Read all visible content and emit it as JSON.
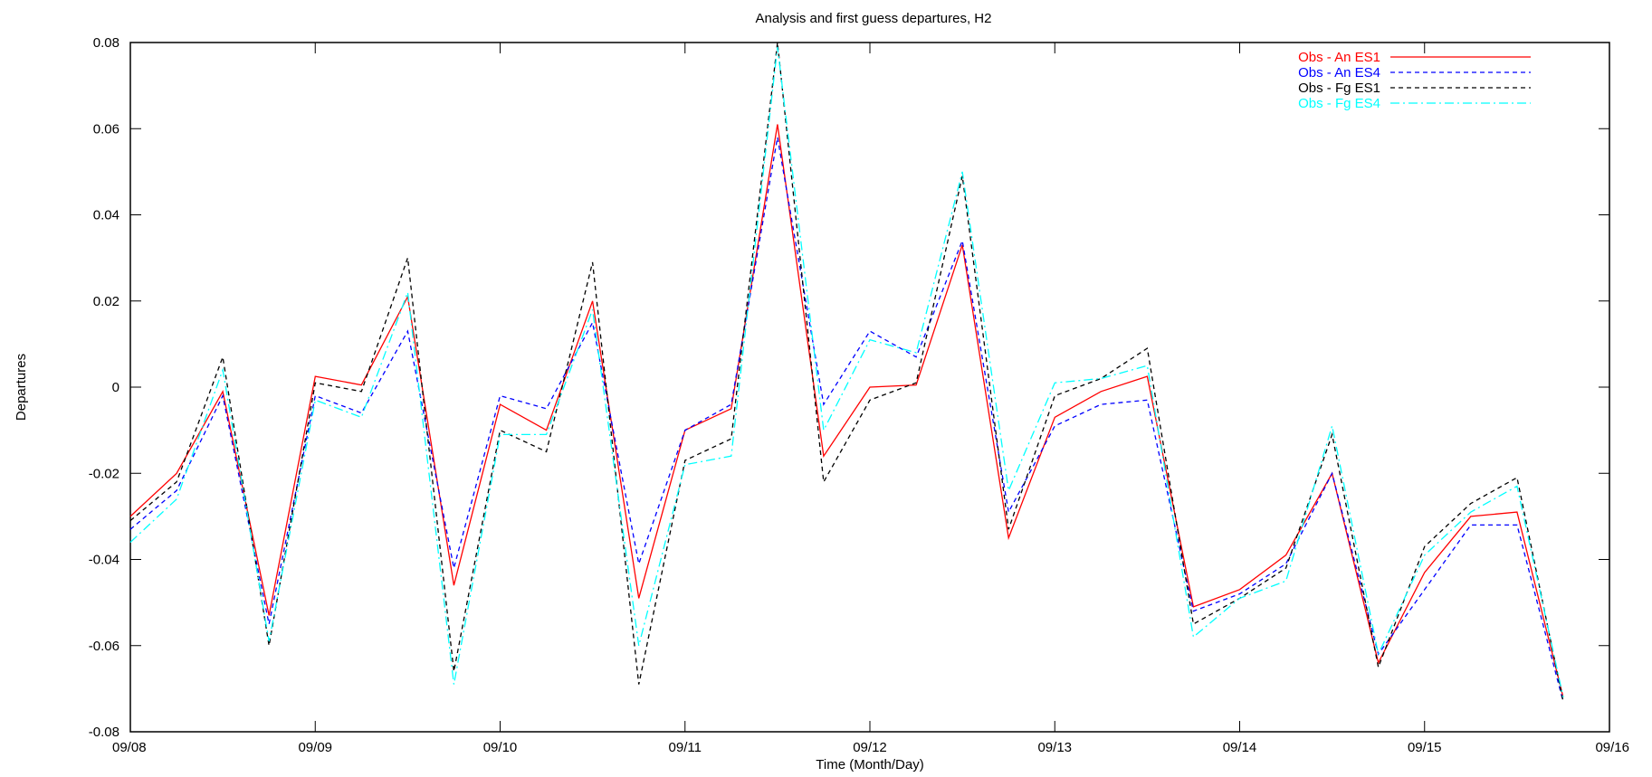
{
  "chart_data": {
    "type": "line",
    "title": "Analysis and first guess departures, H2",
    "xlabel": "Time (Month/Day)",
    "ylabel": "Departures",
    "xlim": [
      0,
      8
    ],
    "ylim": [
      -0.08,
      0.08
    ],
    "x_ticks": [
      {
        "value": 0,
        "label": "09/08"
      },
      {
        "value": 1,
        "label": "09/09"
      },
      {
        "value": 2,
        "label": "09/10"
      },
      {
        "value": 3,
        "label": "09/11"
      },
      {
        "value": 4,
        "label": "09/12"
      },
      {
        "value": 5,
        "label": "09/13"
      },
      {
        "value": 6,
        "label": "09/14"
      },
      {
        "value": 7,
        "label": "09/15"
      },
      {
        "value": 8,
        "label": "09/16"
      }
    ],
    "y_ticks": [
      {
        "value": 0.08,
        "label": "0.08"
      },
      {
        "value": 0.06,
        "label": "0.06"
      },
      {
        "value": 0.04,
        "label": "0.04"
      },
      {
        "value": 0.02,
        "label": "0.02"
      },
      {
        "value": 0,
        "label": "0"
      },
      {
        "value": -0.02,
        "label": "-0.02"
      },
      {
        "value": -0.04,
        "label": "-0.04"
      },
      {
        "value": -0.06,
        "label": "-0.06"
      },
      {
        "value": -0.08,
        "label": "-0.08"
      }
    ],
    "grid": false,
    "legend_position": "top-right",
    "x": [
      0,
      0.25,
      0.5,
      0.75,
      1,
      1.25,
      1.5,
      1.75,
      2,
      2.25,
      2.5,
      2.75,
      3,
      3.25,
      3.5,
      3.75,
      4,
      4.25,
      4.5,
      4.75,
      5,
      5.25,
      5.5,
      5.75,
      6,
      6.25,
      6.5,
      6.75,
      7,
      7.25,
      7.5,
      7.75
    ],
    "series": [
      {
        "name": "Obs - An ES1",
        "color": "#ff0000",
        "dash": "solid",
        "values": [
          -0.03,
          -0.02,
          -0.001,
          -0.053,
          0.0025,
          0.0005,
          0.021,
          -0.046,
          -0.004,
          -0.01,
          0.02,
          -0.049,
          -0.01,
          -0.005,
          0.061,
          -0.016,
          0.0,
          0.0005,
          0.033,
          -0.035,
          -0.007,
          -0.001,
          0.0025,
          -0.051,
          -0.047,
          -0.039,
          -0.02,
          -0.064,
          -0.043,
          -0.03,
          -0.029,
          -0.072
        ]
      },
      {
        "name": "Obs - An ES4",
        "color": "#0000ff",
        "dash": "dashed",
        "values": [
          -0.033,
          -0.024,
          -0.002,
          -0.055,
          -0.002,
          -0.006,
          0.013,
          -0.042,
          -0.002,
          -0.005,
          0.015,
          -0.041,
          -0.01,
          -0.004,
          0.058,
          -0.004,
          0.013,
          0.007,
          0.034,
          -0.029,
          -0.009,
          -0.004,
          -0.003,
          -0.052,
          -0.048,
          -0.041,
          -0.02,
          -0.062,
          -0.047,
          -0.032,
          -0.032,
          -0.073
        ]
      },
      {
        "name": "Obs - Fg ES1",
        "color": "#000000",
        "dash": "dashed",
        "values": [
          -0.031,
          -0.022,
          0.007,
          -0.06,
          0.001,
          -0.001,
          0.03,
          -0.066,
          -0.01,
          -0.015,
          0.029,
          -0.069,
          -0.017,
          -0.012,
          0.08,
          -0.022,
          -0.003,
          0.001,
          0.049,
          -0.033,
          -0.002,
          0.002,
          0.009,
          -0.055,
          -0.049,
          -0.042,
          -0.011,
          -0.065,
          -0.037,
          -0.027,
          -0.021,
          -0.073
        ]
      },
      {
        "name": "Obs - Fg ES4",
        "color": "#00ffff",
        "dash": "dashdot",
        "values": [
          -0.036,
          -0.026,
          0.004,
          -0.059,
          -0.003,
          -0.007,
          0.022,
          -0.069,
          -0.011,
          -0.011,
          0.018,
          -0.06,
          -0.018,
          -0.016,
          0.079,
          -0.01,
          0.011,
          0.008,
          0.05,
          -0.024,
          0.001,
          0.002,
          0.005,
          -0.058,
          -0.049,
          -0.045,
          -0.009,
          -0.062,
          -0.039,
          -0.029,
          -0.023,
          -0.072
        ]
      }
    ]
  }
}
